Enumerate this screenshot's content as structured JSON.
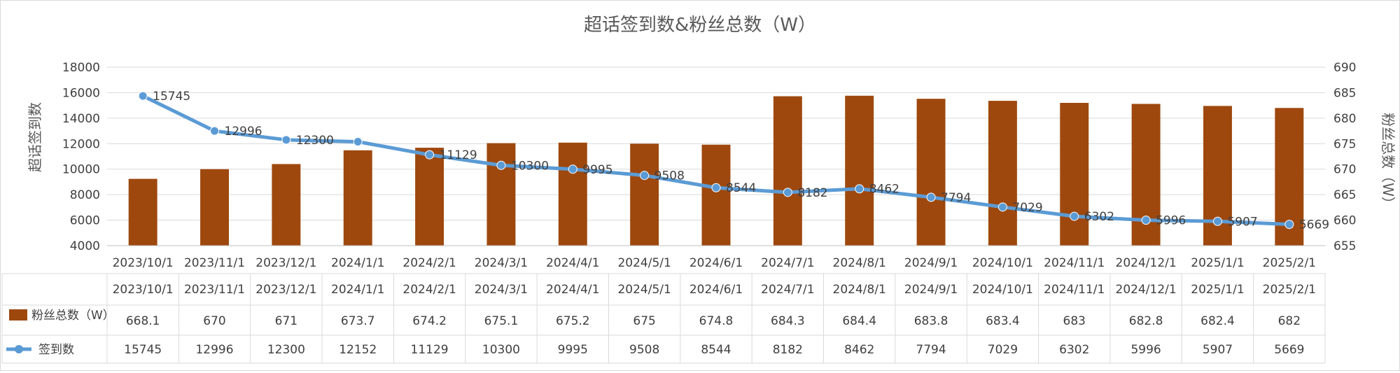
{
  "chart_data": {
    "type": "bar+line",
    "title": "超话签到数&粉丝总数（W）",
    "ylabel_left": "超话签到数",
    "ylabel_right": "粉丝总数（W）",
    "ylim_left": [
      4000,
      18000
    ],
    "yticks_left": [
      4000,
      6000,
      8000,
      10000,
      12000,
      14000,
      16000,
      18000
    ],
    "ylim_right": [
      655,
      690
    ],
    "yticks_right": [
      655,
      660,
      665,
      670,
      675,
      680,
      685,
      690
    ],
    "categories": [
      "2023/10/1",
      "2023/11/1",
      "2023/12/1",
      "2024/1/1",
      "2024/2/1",
      "2024/3/1",
      "2024/4/1",
      "2024/5/1",
      "2024/6/1",
      "2024/7/1",
      "2024/8/1",
      "2024/9/1",
      "2024/10/1",
      "2024/11/1",
      "2024/12/1",
      "2025/1/1",
      "2025/2/1"
    ],
    "series": [
      {
        "name": "粉丝总数（W）",
        "type": "bar",
        "axis": "right",
        "color": "#9e480e",
        "values": [
          668.1,
          670,
          671,
          673.7,
          674.2,
          675.1,
          675.2,
          675,
          674.8,
          684.3,
          684.4,
          683.8,
          683.4,
          683,
          682.8,
          682.4,
          682
        ]
      },
      {
        "name": "签到数",
        "type": "line",
        "axis": "left",
        "color": "#5b9bd5",
        "values": [
          15745,
          12996,
          12300,
          12152,
          11129,
          10300,
          9995,
          9508,
          8544,
          8182,
          8462,
          7794,
          7029,
          6302,
          5996,
          5907,
          5669
        ]
      }
    ],
    "data_labels": [
      "15745",
      "12996",
      "12300",
      "",
      "11129",
      "10300",
      "9995",
      "9508",
      "8544",
      "8182",
      "8462",
      "7794",
      "7029",
      "6302",
      "5996",
      "5907",
      "5669"
    ],
    "table": {
      "bar_row_label": "粉丝总数（W）",
      "bar_row_values": [
        "668.1",
        "670",
        "671",
        "673.7",
        "674.2",
        "675.1",
        "675.2",
        "675",
        "674.8",
        "684.3",
        "684.4",
        "683.8",
        "683.4",
        "683",
        "682.8",
        "682.4",
        "682"
      ],
      "line_row_label": "签到数",
      "line_row_values": [
        "15745",
        "12996",
        "12300",
        "12152",
        "11129",
        "10300",
        "9995",
        "9508",
        "8544",
        "8182",
        "8462",
        "7794",
        "7029",
        "6302",
        "5996",
        "5907",
        "5669"
      ]
    }
  }
}
